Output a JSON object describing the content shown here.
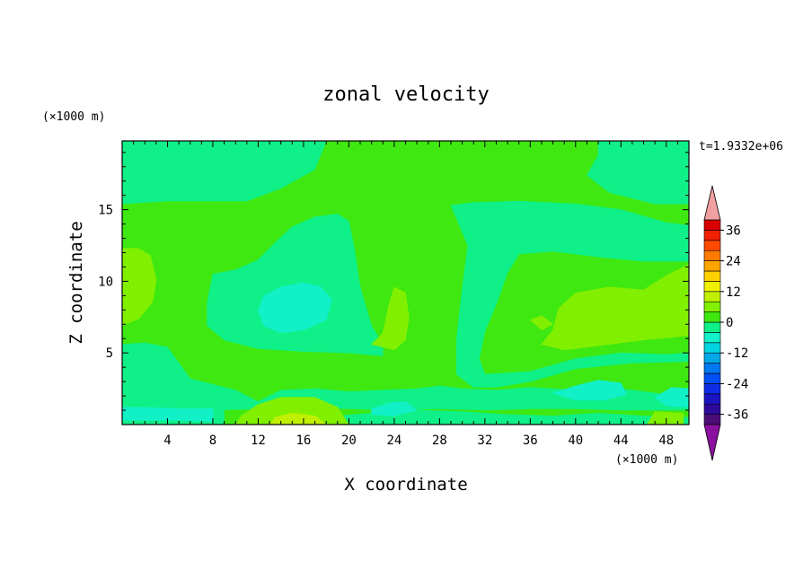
{
  "chart_data": {
    "type": "heatmap",
    "title": "zonal velocity",
    "xlabel": "X coordinate",
    "ylabel": "Z coordinate",
    "x_unit": "(×1000 m)",
    "z_unit": "(×1000 m)",
    "time_label": "t=1.9332e+06",
    "xlim": [
      0,
      50
    ],
    "ylim": [
      0,
      19.8
    ],
    "x_ticks": [
      4,
      8,
      12,
      16,
      20,
      24,
      28,
      32,
      36,
      40,
      44,
      48
    ],
    "y_ticks": [
      5,
      10,
      15
    ],
    "colorbar": {
      "levels": [
        -40,
        -36,
        -32,
        -28,
        -24,
        -20,
        -16,
        -12,
        -8,
        -4,
        0,
        4,
        8,
        12,
        16,
        20,
        24,
        28,
        32,
        36,
        40
      ],
      "tick_labels": [
        36,
        24,
        12,
        0,
        -12,
        -24,
        -36
      ],
      "colors": [
        "#4b0d78",
        "#2d0a9b",
        "#1a15c0",
        "#0f2ee6",
        "#0050f5",
        "#0078f0",
        "#00a8e8",
        "#00d4e0",
        "#12f0c8",
        "#10f088",
        "#3ee810",
        "#80f000",
        "#c0f000",
        "#f0f000",
        "#ffd000",
        "#ffa500",
        "#ff7a00",
        "#ff4a00",
        "#f02000",
        "#d80000"
      ],
      "over_color": "#f0a0a0",
      "under_color": "#8a10a0"
    },
    "regions": [
      {
        "level": "0..4",
        "color": "#3ee810",
        "polygon": [
          [
            0,
            0
          ],
          [
            50,
            0
          ],
          [
            50,
            19.8
          ],
          [
            0,
            19.8
          ]
        ]
      },
      {
        "level": "-4..0",
        "color": "#10f088",
        "polygon": [
          [
            0,
            19.8
          ],
          [
            18,
            19.8
          ],
          [
            17,
            17.8
          ],
          [
            14,
            16.5
          ],
          [
            11,
            15.6
          ],
          [
            4,
            15.6
          ],
          [
            0,
            15.4
          ]
        ]
      },
      {
        "level": "-4..0",
        "color": "#10f088",
        "polygon": [
          [
            42,
            19.8
          ],
          [
            50,
            19.8
          ],
          [
            50,
            15.4
          ],
          [
            47,
            15.4
          ],
          [
            43,
            16.2
          ],
          [
            41,
            17.4
          ],
          [
            42,
            18.8
          ]
        ]
      },
      {
        "level": "-4..0",
        "color": "#10f088",
        "polygon": [
          [
            29,
            15.3
          ],
          [
            31,
            15.5
          ],
          [
            35,
            15.6
          ],
          [
            40,
            15.4
          ],
          [
            44,
            15.0
          ],
          [
            48,
            14.1
          ],
          [
            50,
            13.9
          ],
          [
            50,
            11.4
          ],
          [
            46,
            11.4
          ],
          [
            42,
            11.7
          ],
          [
            38,
            12.1
          ],
          [
            35,
            11.9
          ],
          [
            34,
            10.6
          ],
          [
            33,
            8.4
          ],
          [
            32,
            6.5
          ],
          [
            31.5,
            4.6
          ],
          [
            32,
            3.5
          ],
          [
            36,
            3.7
          ],
          [
            40,
            4.6
          ],
          [
            44,
            5.0
          ],
          [
            48,
            4.9
          ],
          [
            50,
            5.0
          ],
          [
            50,
            4.4
          ],
          [
            45,
            4.3
          ],
          [
            40,
            3.9
          ],
          [
            36,
            3.0
          ],
          [
            33,
            2.6
          ],
          [
            31,
            2.6
          ],
          [
            29.5,
            3.5
          ],
          [
            29.5,
            6.0
          ],
          [
            30,
            9.5
          ],
          [
            30.5,
            12.5
          ]
        ]
      },
      {
        "level": "-4..0",
        "color": "#10f088",
        "polygon": [
          [
            8,
            10.5
          ],
          [
            10,
            10.8
          ],
          [
            12,
            11.5
          ],
          [
            13.5,
            12.7
          ],
          [
            15,
            13.8
          ],
          [
            17,
            14.5
          ],
          [
            19,
            14.7
          ],
          [
            20,
            14.2
          ],
          [
            20.5,
            12.2
          ],
          [
            21,
            9.6
          ],
          [
            22,
            6.9
          ],
          [
            23,
            5.6
          ],
          [
            23,
            4.8
          ],
          [
            20,
            5.0
          ],
          [
            16,
            5.1
          ],
          [
            12,
            5.3
          ],
          [
            9,
            5.9
          ],
          [
            7.5,
            6.9
          ],
          [
            7.5,
            8.5
          ]
        ]
      },
      {
        "level": "-4..0",
        "color": "#10f088",
        "polygon": [
          [
            0,
            5.6
          ],
          [
            2,
            5.7
          ],
          [
            4,
            5.4
          ],
          [
            5,
            4.3
          ],
          [
            6,
            3.2
          ],
          [
            8,
            2.8
          ],
          [
            10,
            2.4
          ],
          [
            12,
            1.6
          ],
          [
            14,
            2.4
          ],
          [
            17,
            2.5
          ],
          [
            20,
            2.3
          ],
          [
            23,
            2.4
          ],
          [
            26,
            2.5
          ],
          [
            28,
            2.7
          ],
          [
            30,
            2.5
          ],
          [
            33,
            2.4
          ],
          [
            36,
            2.6
          ],
          [
            40,
            2.4
          ],
          [
            44,
            2.5
          ],
          [
            48,
            2.1
          ],
          [
            50,
            2.2
          ],
          [
            50,
            1.0
          ],
          [
            44,
            1.0
          ],
          [
            40,
            1.1
          ],
          [
            36,
            1.1
          ],
          [
            32,
            1.0
          ],
          [
            28,
            1.1
          ],
          [
            24,
            1.0
          ],
          [
            20,
            1.1
          ],
          [
            16,
            1.2
          ],
          [
            12,
            1.1
          ],
          [
            8,
            1.0
          ],
          [
            4,
            1.1
          ],
          [
            0,
            1.0
          ]
        ]
      },
      {
        "level": "-4..0",
        "color": "#10f088",
        "polygon": [
          [
            0,
            1.6
          ],
          [
            3,
            1.8
          ],
          [
            5,
            1.2
          ],
          [
            7,
            1.2
          ],
          [
            9,
            1.1
          ],
          [
            9,
            0
          ],
          [
            0,
            0
          ]
        ]
      },
      {
        "level": "-4..0",
        "color": "#10f088",
        "polygon": [
          [
            18,
            0
          ],
          [
            50,
            0
          ],
          [
            50,
            0.5
          ],
          [
            46,
            0.6
          ],
          [
            42,
            0.8
          ],
          [
            38,
            0.6
          ],
          [
            34,
            0.7
          ],
          [
            30,
            0.9
          ],
          [
            26,
            1.0
          ],
          [
            22,
            0.8
          ],
          [
            19,
            0.6
          ]
        ]
      },
      {
        "level": "-8..-4",
        "color": "#12f0c8",
        "polygon": [
          [
            12,
            7.9
          ],
          [
            12.5,
            9.0
          ],
          [
            14,
            9.6
          ],
          [
            16,
            9.9
          ],
          [
            17.5,
            9.6
          ],
          [
            18.5,
            8.7
          ],
          [
            18,
            7.3
          ],
          [
            16,
            6.6
          ],
          [
            14,
            6.4
          ],
          [
            12.5,
            6.9
          ]
        ]
      },
      {
        "level": "-8..-4",
        "color": "#12f0c8",
        "polygon": [
          [
            0,
            0.3
          ],
          [
            5,
            0.3
          ],
          [
            8,
            0.2
          ],
          [
            8,
            1.1
          ],
          [
            5,
            1.1
          ],
          [
            2,
            1.2
          ],
          [
            0,
            1.2
          ]
        ]
      },
      {
        "level": "-8..-4",
        "color": "#12f0c8",
        "polygon": [
          [
            22,
            1.1
          ],
          [
            23.5,
            1.5
          ],
          [
            25,
            1.6
          ],
          [
            26,
            1.0
          ],
          [
            24,
            0.6
          ],
          [
            22,
            0.7
          ]
        ]
      },
      {
        "level": "-8..-4",
        "color": "#12f0c8",
        "polygon": [
          [
            38,
            2.2
          ],
          [
            40,
            2.7
          ],
          [
            42,
            3.1
          ],
          [
            44,
            2.9
          ],
          [
            44.5,
            2.1
          ],
          [
            42.5,
            1.7
          ],
          [
            40,
            1.7
          ]
        ]
      },
      {
        "level": "-8..-4",
        "color": "#12f0c8",
        "polygon": [
          [
            47,
            1.9
          ],
          [
            48.5,
            2.6
          ],
          [
            50,
            2.5
          ],
          [
            50,
            1.2
          ],
          [
            48,
            1.3
          ]
        ]
      },
      {
        "level": "4..8",
        "color": "#80f000",
        "polygon": [
          [
            0,
            6.9
          ],
          [
            1.5,
            7.4
          ],
          [
            2.7,
            8.6
          ],
          [
            3,
            10.1
          ],
          [
            2.5,
            11.8
          ],
          [
            1.4,
            12.3
          ],
          [
            0,
            12.3
          ]
        ]
      },
      {
        "level": "4..8",
        "color": "#80f000",
        "polygon": [
          [
            22,
            5.6
          ],
          [
            23,
            6.4
          ],
          [
            23.5,
            8.3
          ],
          [
            24,
            9.6
          ],
          [
            25,
            9.2
          ],
          [
            25.3,
            7.5
          ],
          [
            25,
            5.9
          ],
          [
            24,
            5.2
          ]
        ]
      },
      {
        "level": "4..8",
        "color": "#80f000",
        "polygon": [
          [
            37,
            5.6
          ],
          [
            39,
            5.2
          ],
          [
            42,
            5.5
          ],
          [
            46,
            5.9
          ],
          [
            50,
            6.2
          ],
          [
            50,
            11.2
          ],
          [
            48,
            10.4
          ],
          [
            46,
            9.4
          ],
          [
            43,
            9.6
          ],
          [
            40,
            9.2
          ],
          [
            38.5,
            8.1
          ],
          [
            38,
            6.6
          ]
        ]
      },
      {
        "level": "4..8",
        "color": "#80f000",
        "polygon": [
          [
            36,
            7.3
          ],
          [
            37,
            7.6
          ],
          [
            38,
            7.0
          ],
          [
            37,
            6.6
          ]
        ]
      },
      {
        "level": "4..8",
        "color": "#80f000",
        "polygon": [
          [
            10,
            0
          ],
          [
            20,
            0
          ],
          [
            19,
            1.2
          ],
          [
            17,
            1.9
          ],
          [
            14,
            1.9
          ],
          [
            12,
            1.4
          ],
          [
            10.5,
            0.6
          ]
        ]
      },
      {
        "level": "4..8",
        "color": "#80f000",
        "polygon": [
          [
            46.3,
            0
          ],
          [
            49.5,
            0
          ],
          [
            49.5,
            0.8
          ],
          [
            47,
            0.9
          ]
        ]
      },
      {
        "level": "8..12",
        "color": "#c0f000",
        "polygon": [
          [
            13,
            0
          ],
          [
            18,
            0
          ],
          [
            17,
            0.6
          ],
          [
            15,
            0.8
          ],
          [
            13.5,
            0.5
          ]
        ]
      }
    ]
  }
}
